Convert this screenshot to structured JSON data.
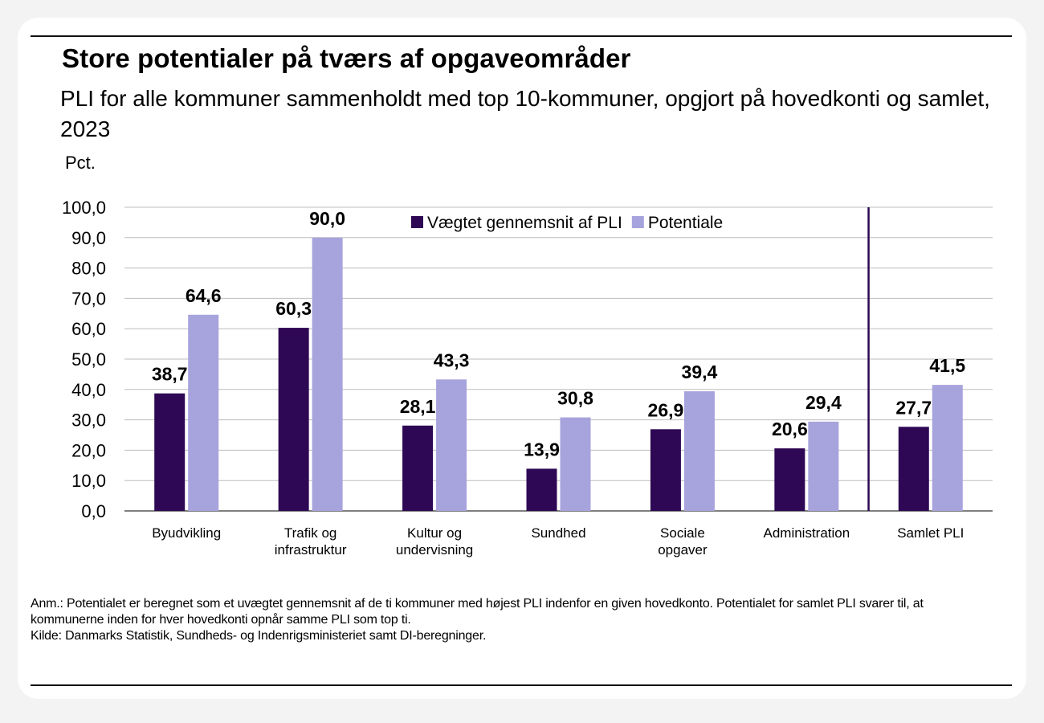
{
  "chart_data": {
    "type": "bar",
    "title": "Store potentialer på tværs af opgaveområder",
    "subtitle": "PLI for alle kommuner sammenholdt med top 10-kommuner, opgjort på hovedkonti og samlet, 2023",
    "ylabel": "Pct.",
    "ylim": [
      0,
      100
    ],
    "yticks": [
      "0,0",
      "10,0",
      "20,0",
      "30,0",
      "40,0",
      "50,0",
      "60,0",
      "70,0",
      "80,0",
      "90,0",
      "100,0"
    ],
    "grid": true,
    "legend_position": "top-center",
    "categories": [
      [
        "Byudvikling"
      ],
      [
        "Trafik og",
        "infrastruktur"
      ],
      [
        "Kultur og",
        "undervisning"
      ],
      [
        "Sundhed"
      ],
      [
        "Sociale",
        "opgaver"
      ],
      [
        "Administration"
      ],
      [
        "Samlet PLI"
      ]
    ],
    "separator_before_category": 6,
    "series": [
      {
        "name": "Vægtet gennemsnit af PLI",
        "color": "#2e0854",
        "values": [
          38.7,
          60.3,
          28.1,
          13.9,
          26.9,
          20.6,
          27.7
        ],
        "labels": [
          "38,7",
          "60,3",
          "28,1",
          "13,9",
          "26,9",
          "20,6",
          "27,7"
        ]
      },
      {
        "name": "Potentiale",
        "color": "#a7a3dc",
        "values": [
          64.6,
          90.0,
          43.3,
          30.8,
          39.4,
          29.4,
          41.5
        ],
        "labels": [
          "64,6",
          "90,0",
          "43,3",
          "30,8",
          "39,4",
          "29,4",
          "41,5"
        ]
      }
    ]
  },
  "notes": {
    "anm": "Anm.: Potentialet er beregnet som et uvægtet gennemsnit af de ti kommuner med højest PLI indenfor en given hovedkonto. Potentialet for samlet PLI svarer til, at kommunerne inden for hver hovedkonti opnår samme PLI som top ti.",
    "kilde": "Kilde: Danmarks Statistik, Sundheds- og Indenrigsministeriet samt DI-beregninger."
  }
}
